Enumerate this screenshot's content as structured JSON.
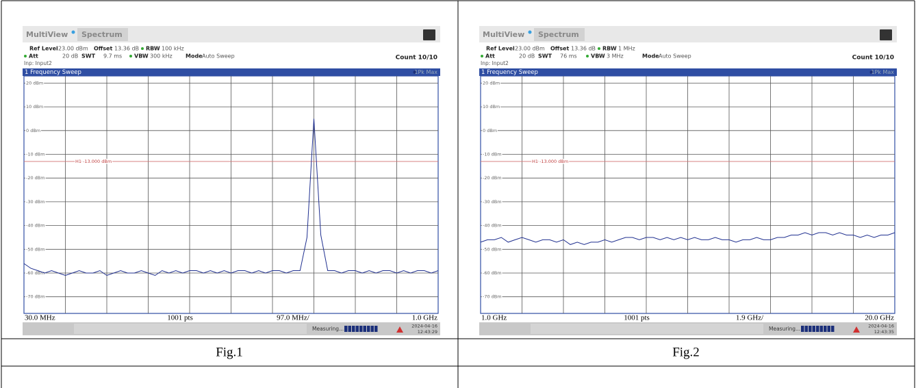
{
  "panels": [
    {
      "app": "MultiView",
      "tab": "Spectrum",
      "ref_level": "Ref Level",
      "ref_value": "23.00 dBm",
      "offset_label": "Offset",
      "offset_value": "13.36 dB",
      "rbw_label": "RBW",
      "rbw_value": "100 kHz",
      "att_label": "Att",
      "att_value": "20 dB",
      "swt_label": "SWT",
      "swt_value": "9.7 ms",
      "vbw_label": "VBW",
      "vbw_value": "300 kHz",
      "mode_label": "Mode",
      "mode_value": "Auto Sweep",
      "count": "Count 10/10",
      "input": "Inp: Input2",
      "window_title": "1 Frequency Sweep",
      "trace_label": "1Pk Max",
      "limit_label": "H1 -13.000 dBm",
      "limit_value": -13,
      "ylim": [
        -77,
        23
      ],
      "yticks": [
        {
          "value": 20,
          "label": "20 dBm"
        },
        {
          "value": 10,
          "label": "10 dBm"
        },
        {
          "value": 0,
          "label": "0 dBm"
        },
        {
          "value": -10,
          "label": "-10 dBm"
        },
        {
          "value": -20,
          "label": "-20 dBm"
        },
        {
          "value": -30,
          "label": "-30 dBm"
        },
        {
          "value": -40,
          "label": "-40 dBm"
        },
        {
          "value": -50,
          "label": "-50 dBm"
        },
        {
          "value": -60,
          "label": "-60 dBm"
        },
        {
          "value": -70,
          "label": "-70 dBm"
        }
      ],
      "x_start": "30.0 MHz",
      "points": "1001 pts",
      "x_div": "97.0 MHz/",
      "x_stop": "1.0 GHz",
      "status": "Measuring...",
      "date": "2024-04-16",
      "time": "12:43:29",
      "trace": [
        -56,
        -58,
        -59,
        -60,
        -59,
        -60,
        -61,
        -60,
        -59,
        -60,
        -60,
        -59,
        -61,
        -60,
        -59,
        -60,
        -60,
        -59,
        -60,
        -61,
        -59,
        -60,
        -59,
        -60,
        -59,
        -59,
        -60,
        -59,
        -60,
        -59,
        -60,
        -59,
        -59,
        -60,
        -59,
        -60,
        -59,
        -59,
        -60,
        -59,
        -59,
        -45,
        5,
        -44,
        -59,
        -59,
        -60,
        -59,
        -59,
        -60,
        -59,
        -60,
        -59,
        -59,
        -60,
        -59,
        -60,
        -59,
        -59,
        -60,
        -59
      ],
      "caption": "Fig.1"
    },
    {
      "app": "MultiView",
      "tab": "Spectrum",
      "ref_level": "Ref Level",
      "ref_value": "23.00 dBm",
      "offset_label": "Offset",
      "offset_value": "13.36 dB",
      "rbw_label": "RBW",
      "rbw_value": "1 MHz",
      "att_label": "Att",
      "att_value": "20 dB",
      "swt_label": "SWT",
      "swt_value": "76 ms",
      "vbw_label": "VBW",
      "vbw_value": "3 MHz",
      "mode_label": "Mode",
      "mode_value": "Auto Sweep",
      "count": "Count 10/10",
      "input": "Inp: Input2",
      "window_title": "1 Frequency Sweep",
      "trace_label": "1Pk Max",
      "limit_label": "H1 -13.000 dBm",
      "limit_value": -13,
      "ylim": [
        -77,
        23
      ],
      "yticks": [
        {
          "value": 20,
          "label": "20 dBm"
        },
        {
          "value": 10,
          "label": "10 dBm"
        },
        {
          "value": 0,
          "label": "0 dBm"
        },
        {
          "value": -10,
          "label": "-10 dBm"
        },
        {
          "value": -20,
          "label": "-20 dBm"
        },
        {
          "value": -30,
          "label": "-30 dBm"
        },
        {
          "value": -40,
          "label": "-40 dBm"
        },
        {
          "value": -50,
          "label": "-50 dBm"
        },
        {
          "value": -60,
          "label": "-60 dBm"
        },
        {
          "value": -70,
          "label": "-70 dBm"
        }
      ],
      "x_start": "1.0 GHz",
      "points": "1001 pts",
      "x_div": "1.9 GHz/",
      "x_stop": "20.0 GHz",
      "status": "Measuring...",
      "date": "2024-04-16",
      "time": "12:43:35",
      "trace": [
        -47,
        -46,
        -46,
        -45,
        -47,
        -46,
        -45,
        -46,
        -47,
        -46,
        -46,
        -47,
        -46,
        -48,
        -47,
        -48,
        -47,
        -47,
        -46,
        -47,
        -46,
        -45,
        -45,
        -46,
        -45,
        -45,
        -46,
        -45,
        -46,
        -45,
        -46,
        -45,
        -46,
        -46,
        -45,
        -46,
        -46,
        -47,
        -46,
        -46,
        -45,
        -46,
        -46,
        -45,
        -45,
        -44,
        -44,
        -43,
        -44,
        -43,
        -43,
        -44,
        -43,
        -44,
        -44,
        -45,
        -44,
        -45,
        -44,
        -44,
        -43
      ],
      "caption": "Fig.2"
    }
  ]
}
